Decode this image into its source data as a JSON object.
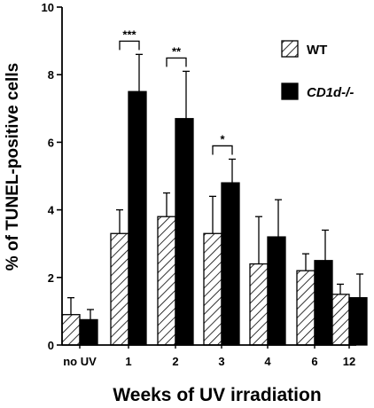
{
  "chart_data": {
    "type": "bar",
    "title": "",
    "xlabel": "Weeks of UV irradiation",
    "ylabel": "% of TUNEL-positive cells",
    "categories": [
      "no UV",
      "1",
      "2",
      "3",
      "4",
      "6",
      "12"
    ],
    "ylim": [
      0,
      10
    ],
    "yticks": [
      "0",
      "2",
      "4",
      "6",
      "8",
      "10"
    ],
    "grid": false,
    "legend_position": "top-right",
    "series": [
      {
        "name": "WT",
        "fill": "hatched",
        "color": "#000000",
        "values": [
          0.9,
          3.3,
          3.8,
          3.3,
          2.4,
          2.2,
          1.5
        ],
        "error": [
          0.5,
          0.7,
          0.7,
          1.1,
          1.4,
          0.5,
          0.3
        ]
      },
      {
        "name": "CD1d-/-",
        "fill": "solid",
        "color": "#000000",
        "values": [
          0.75,
          7.5,
          6.7,
          4.8,
          3.2,
          2.5,
          1.4
        ],
        "error": [
          0.3,
          1.1,
          1.4,
          0.7,
          1.1,
          0.9,
          0.7
        ]
      }
    ],
    "significance": [
      {
        "category_index": 1,
        "label": "***"
      },
      {
        "category_index": 2,
        "label": "**"
      },
      {
        "category_index": 3,
        "label": "*"
      }
    ]
  }
}
